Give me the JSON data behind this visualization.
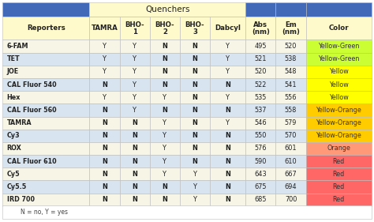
{
  "title": "Quenchers",
  "col_headers": [
    "Reporters",
    "TAMRA",
    "BHO-\n1",
    "BHO-\n2",
    "BHO-\n3",
    "Dabcyl",
    "Abs\n(nm)",
    "Em\n(nm)",
    "Color"
  ],
  "rows": [
    [
      "6-FAM",
      "Y",
      "Y",
      "N",
      "N",
      "Y",
      "495",
      "520",
      "Yellow-Green"
    ],
    [
      "TET",
      "Y",
      "Y",
      "N",
      "N",
      "Y",
      "521",
      "538",
      "Yellow-Green"
    ],
    [
      "JOE",
      "Y",
      "Y",
      "N",
      "N",
      "Y",
      "520",
      "548",
      "Yellow"
    ],
    [
      "CAL Fluor 540",
      "N",
      "Y",
      "N",
      "N",
      "N",
      "522",
      "541",
      "Yellow"
    ],
    [
      "Hex",
      "Y",
      "Y",
      "Y",
      "N",
      "Y",
      "535",
      "556",
      "Yellow"
    ],
    [
      "CAL Fluor 560",
      "N",
      "Y",
      "N",
      "N",
      "N",
      "537",
      "558",
      "Yellow-Orange"
    ],
    [
      "TAMRA",
      "N",
      "N",
      "Y",
      "N",
      "Y",
      "546",
      "579",
      "Yellow-Orange"
    ],
    [
      "Cy3",
      "N",
      "N",
      "Y",
      "N",
      "N",
      "550",
      "570",
      "Yellow-Orange"
    ],
    [
      "ROX",
      "N",
      "N",
      "Y",
      "N",
      "N",
      "576",
      "601",
      "Orange"
    ],
    [
      "CAL Fluor 610",
      "N",
      "N",
      "Y",
      "N",
      "N",
      "590",
      "610",
      "Red"
    ],
    [
      "Cy5",
      "N",
      "N",
      "Y",
      "Y",
      "N",
      "643",
      "667",
      "Red"
    ],
    [
      "Cy5.5",
      "N",
      "N",
      "N",
      "Y",
      "N",
      "675",
      "694",
      "Red"
    ],
    [
      "IRD 700",
      "N",
      "N",
      "N",
      "Y",
      "N",
      "685",
      "700",
      "Red"
    ]
  ],
  "color_map": {
    "Yellow-Green": "#ccff33",
    "Yellow": "#ffff00",
    "Yellow-Orange": "#ffcc00",
    "Orange": "#ff9977",
    "Red": "#ff6666"
  },
  "header_blue": "#4169b8",
  "quencher_header_bg": "#fffacc",
  "col_header_bg": "#fffacc",
  "odd_row_bg": "#f7f5e6",
  "even_row_bg": "#d8e4f0",
  "footer_bg": "#ffffff",
  "border_color": "#bbbbbb",
  "footer_text": "N = no, Y = yes"
}
